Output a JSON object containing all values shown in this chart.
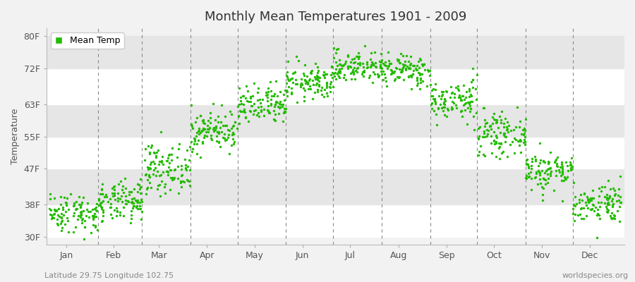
{
  "title": "Monthly Mean Temperatures 1901 - 2009",
  "ylabel": "Temperature",
  "xlabel_labels": [
    "Jan",
    "Feb",
    "Mar",
    "Apr",
    "May",
    "Jun",
    "Jul",
    "Aug",
    "Sep",
    "Oct",
    "Nov",
    "Dec"
  ],
  "ytick_labels": [
    "30F",
    "38F",
    "47F",
    "55F",
    "63F",
    "72F",
    "80F"
  ],
  "ytick_values": [
    30,
    38,
    47,
    55,
    63,
    72,
    80
  ],
  "ylim": [
    28,
    82
  ],
  "dot_color": "#22bb00",
  "background_color": "#f2f2f2",
  "legend_label": "Mean Temp",
  "footer_left": "Latitude 29.75 Longitude 102.75",
  "footer_right": "worldspecies.org",
  "monthly_means": [
    36.0,
    38.5,
    47.0,
    56.5,
    62.5,
    68.5,
    72.5,
    71.5,
    64.0,
    55.5,
    46.5,
    38.5
  ],
  "monthly_stds": [
    2.5,
    2.5,
    3.0,
    2.5,
    2.5,
    2.2,
    2.0,
    2.0,
    2.5,
    2.5,
    2.5,
    2.5
  ],
  "n_years": 109,
  "seed": 42,
  "month_days": [
    31,
    28,
    31,
    30,
    31,
    30,
    31,
    31,
    30,
    31,
    30,
    31
  ],
  "total_days": 365
}
